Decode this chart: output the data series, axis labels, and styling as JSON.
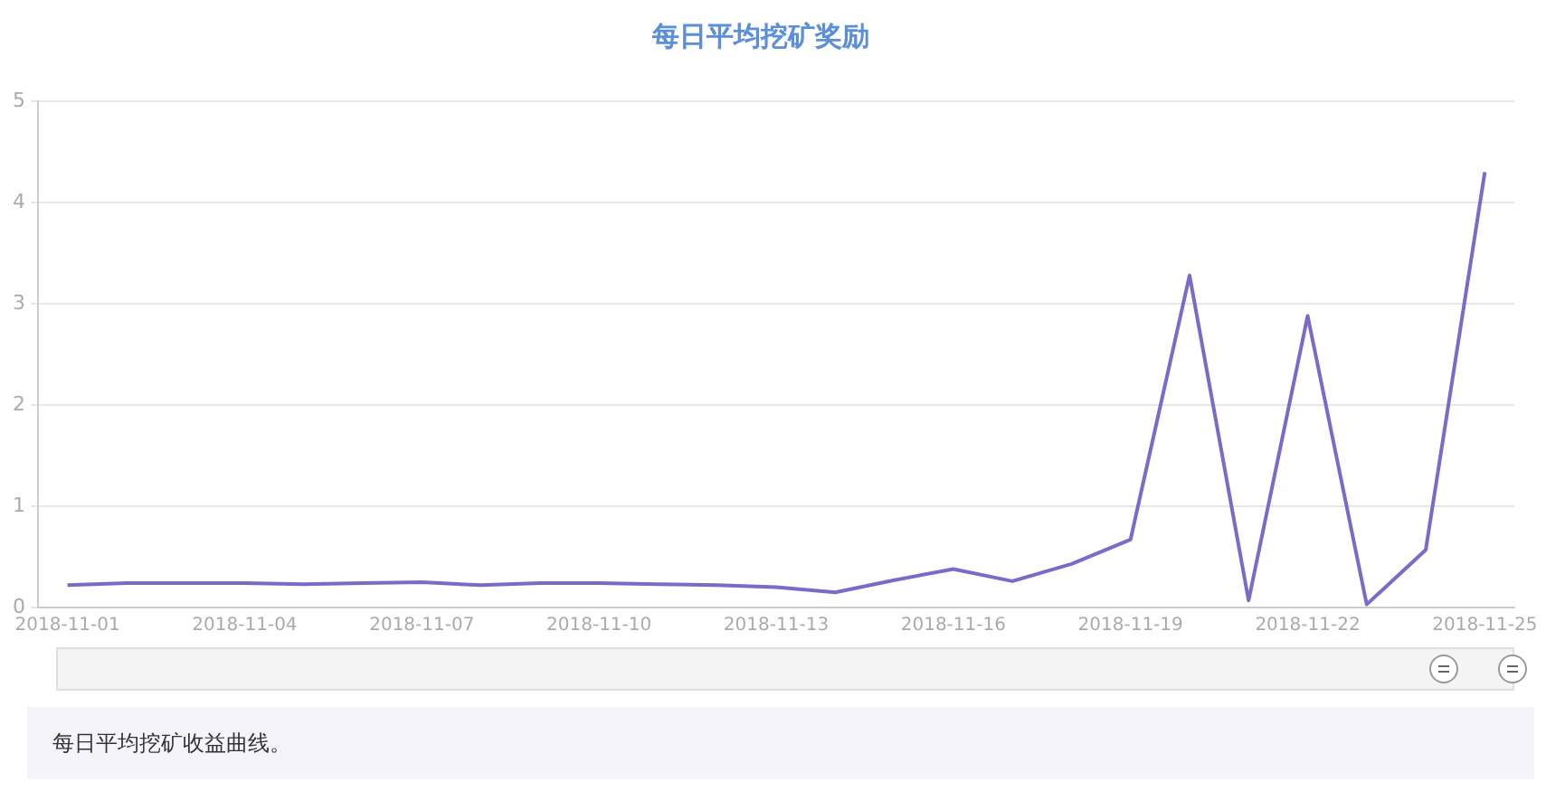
{
  "chart_data": {
    "type": "line",
    "title": "每日平均挖矿奖励",
    "categories": [
      "2018-11-01",
      null,
      null,
      "2018-11-04",
      null,
      null,
      "2018-11-07",
      null,
      null,
      "2018-11-10",
      null,
      null,
      "2018-11-13",
      null,
      null,
      "2018-11-16",
      null,
      null,
      "2018-11-19",
      null,
      null,
      "2018-11-22",
      null,
      null,
      "2018-11-25"
    ],
    "series": [
      {
        "color": "#7b6bc9",
        "values": [
          0.22,
          0.24,
          0.24,
          0.24,
          0.23,
          0.24,
          0.25,
          0.22,
          0.24,
          0.24,
          0.23,
          0.22,
          0.2,
          0.15,
          0.27,
          0.38,
          0.26,
          0.43,
          0.67,
          3.28,
          0.07,
          2.88,
          0.03,
          0.57,
          4.3
        ]
      }
    ],
    "ylim": [
      0,
      5
    ],
    "yticks": [
      0,
      1,
      2,
      3,
      4,
      5
    ],
    "grid": "y",
    "legend": false,
    "marker": "none",
    "line_style": "solid",
    "annotations": [
      "每日平均挖矿收益曲线。"
    ]
  }
}
